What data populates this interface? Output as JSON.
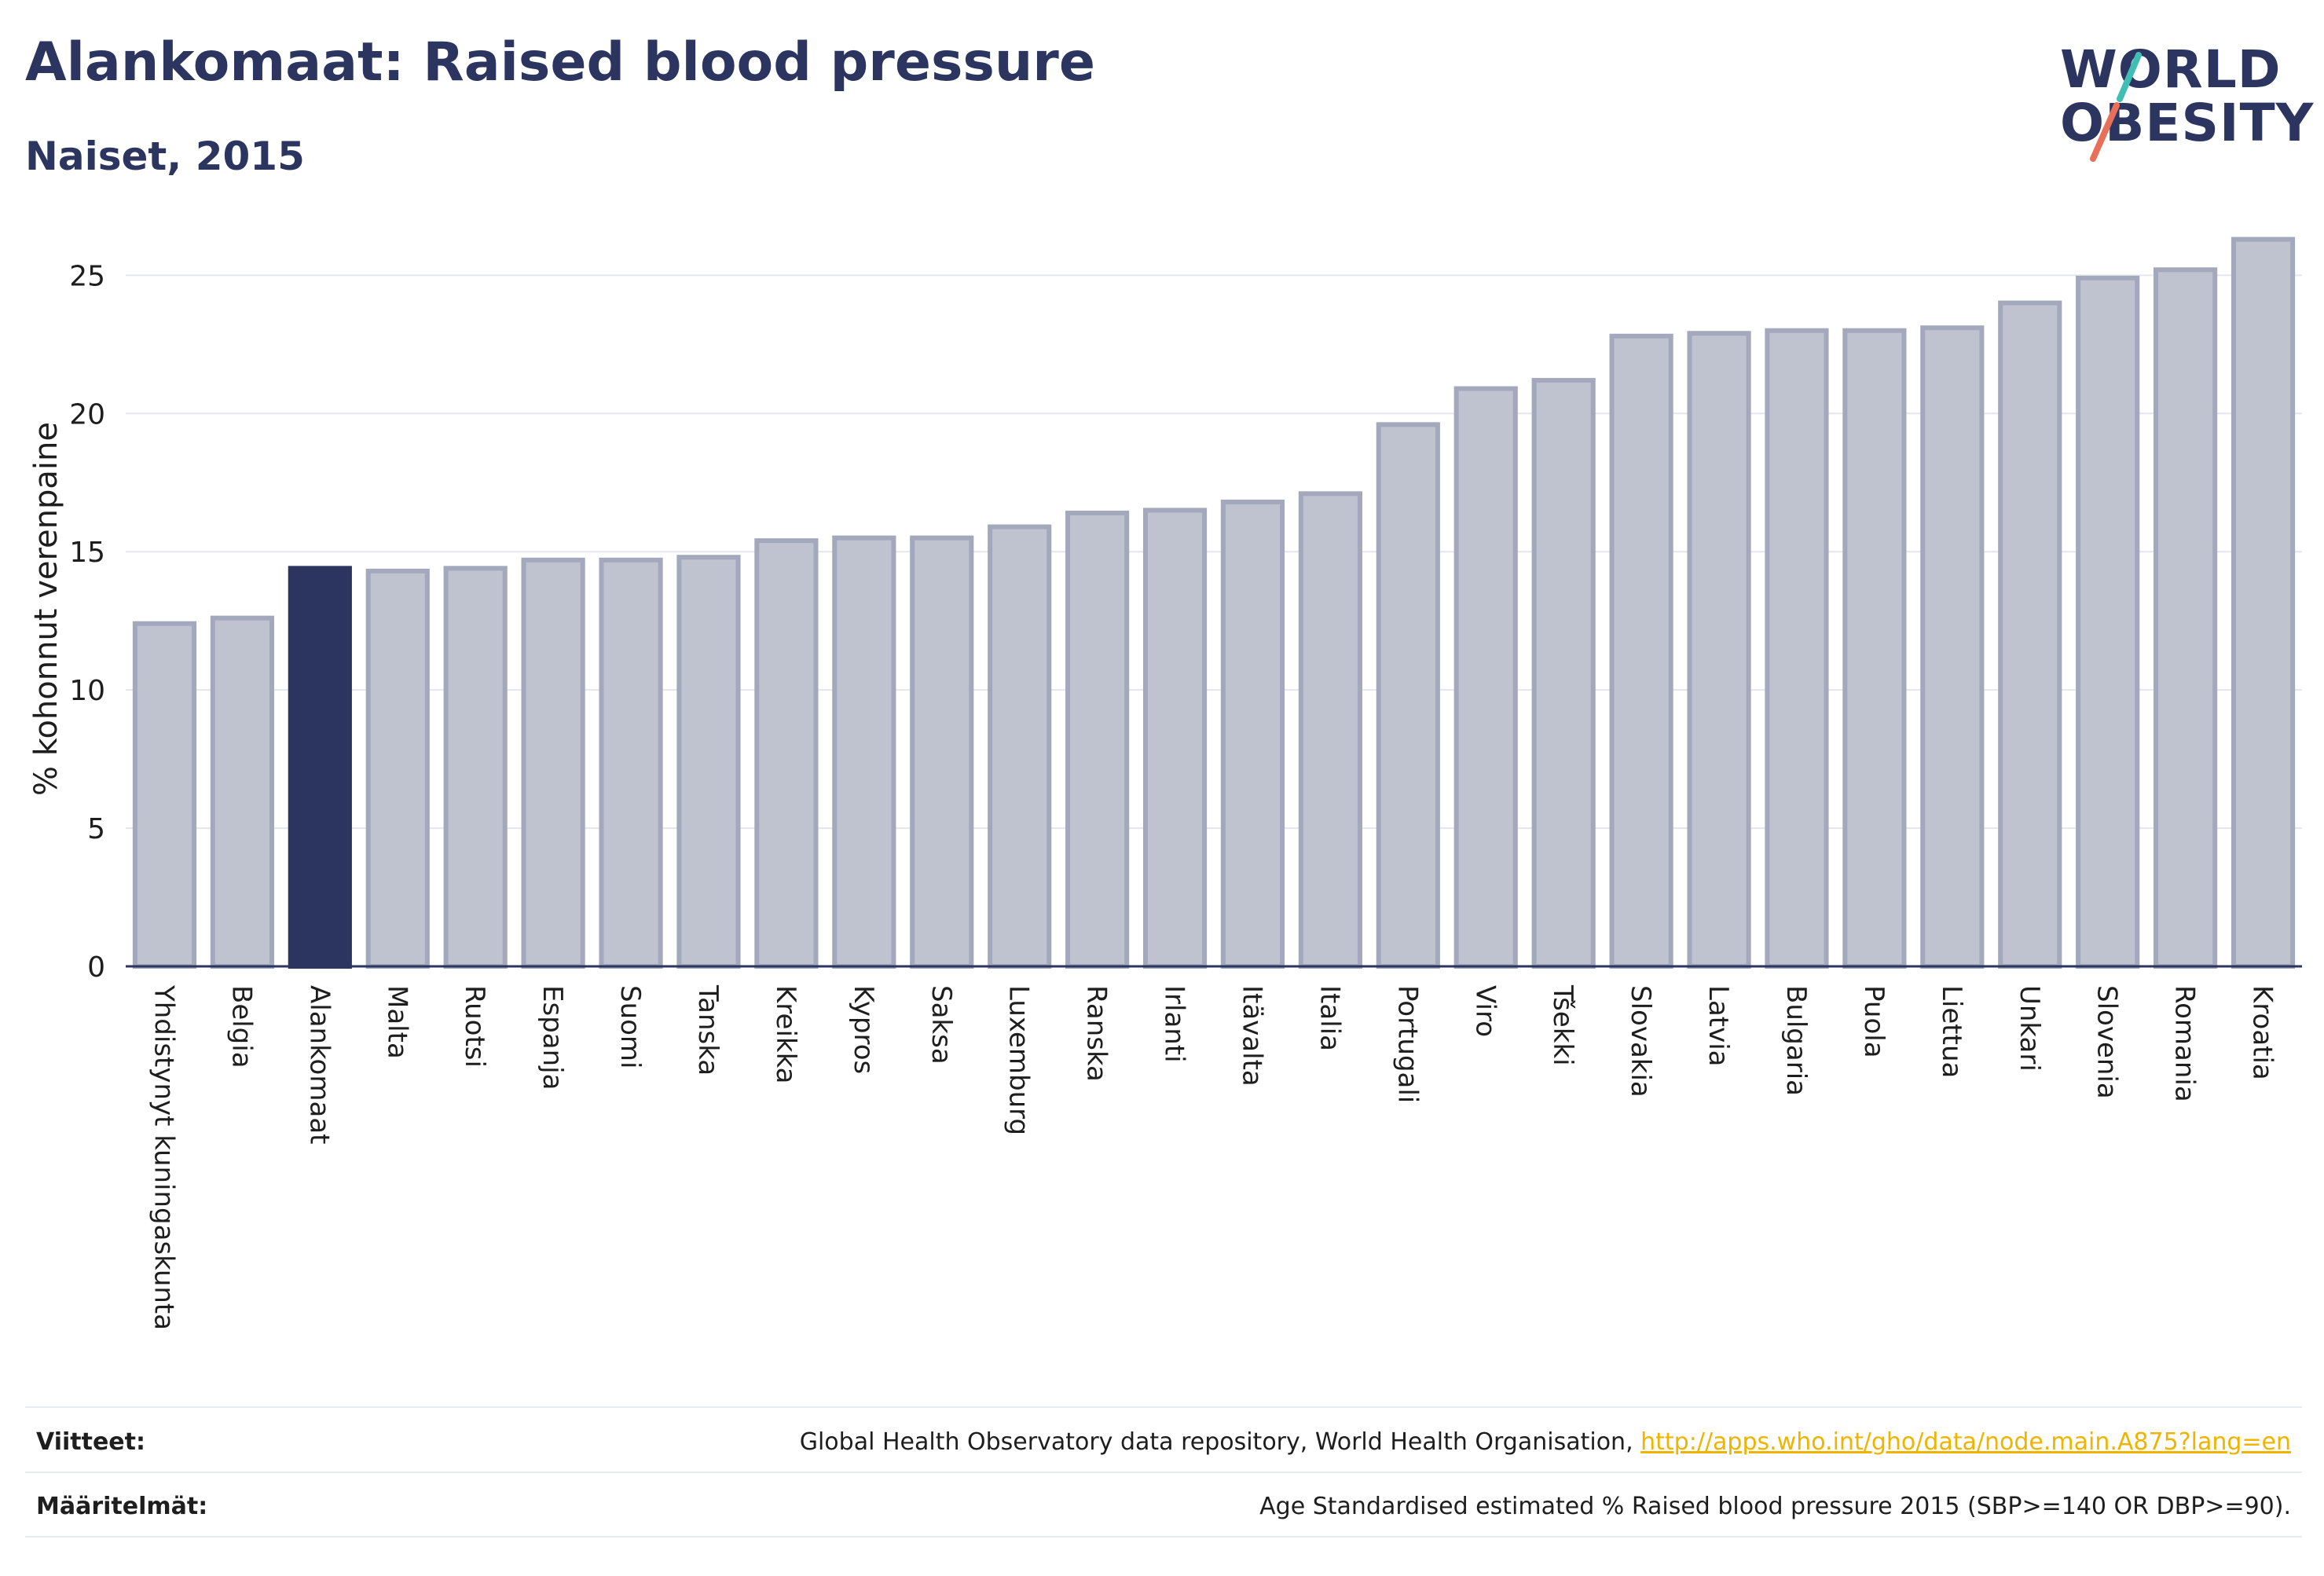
{
  "header": {
    "title": "Alankomaat: Raised blood pressure",
    "subtitle": "Naiset, 2015"
  },
  "logo": {
    "line1": "WORLD",
    "line2": "OBESITY",
    "accent_color": "#e8705a",
    "accent_color_2": "#3fbfb4"
  },
  "colors": {
    "highlight": "#2b3560",
    "bar_fill": "#bfc2cf",
    "bar_stroke": "#a3a8bc",
    "grid": "#e5e6ec"
  },
  "chart_data": {
    "type": "bar",
    "ylabel": "% kohonnut verenpaine",
    "ylim": [
      0,
      27
    ],
    "yticks": [
      0,
      5,
      10,
      15,
      20,
      25
    ],
    "highlight": "Alankomaat",
    "categories": [
      "Yhdistynyt kuningaskunta",
      "Belgia",
      "Alankomaat",
      "Malta",
      "Ruotsi",
      "Espanja",
      "Suomi",
      "Tanska",
      "Kreikka",
      "Kypros",
      "Saksa",
      "Luxemburg",
      "Ranska",
      "Irlanti",
      "Itävalta",
      "Italia",
      "Portugali",
      "Viro",
      "Tšekki",
      "Slovakia",
      "Latvia",
      "Bulgaria",
      "Puola",
      "Liettua",
      "Unkari",
      "Slovenia",
      "Romania",
      "Kroatia"
    ],
    "values": [
      12.4,
      12.6,
      14.4,
      14.3,
      14.4,
      14.7,
      14.7,
      14.8,
      15.4,
      15.5,
      15.5,
      15.9,
      16.4,
      16.5,
      16.8,
      17.1,
      19.6,
      20.9,
      21.2,
      22.8,
      22.9,
      23.0,
      23.0,
      23.1,
      24.0,
      24.9,
      25.2,
      26.3
    ],
    "grid": true
  },
  "footer": {
    "sources_label": "Viitteet:",
    "sources_text": "Global Health Observatory data repository, World Health Organisation, ",
    "sources_link": "http://apps.who.int/gho/data/node.main.A875?lang=en",
    "definitions_label": "Määritelmät:",
    "definitions_text": "Age Standardised estimated % Raised blood pressure 2015 (SBP>=140 OR DBP>=90)."
  }
}
